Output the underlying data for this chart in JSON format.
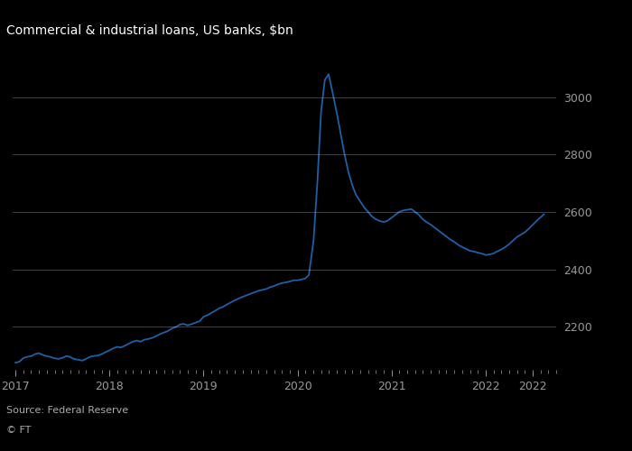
{
  "title": "Commercial & industrial loans, US banks, $bn",
  "source": "Source: Federal Reserve",
  "credit": "© FT",
  "line_color": "#1f5fa6",
  "background_color": "#000000",
  "text_color": "#ffffff",
  "grid_color": "#ffffff",
  "tick_color": "#888888",
  "ylabel_color": "#999999",
  "ylim": [
    2050,
    3150
  ],
  "yticks": [
    2200,
    2400,
    2600,
    2800,
    3000
  ],
  "xlim": [
    2016.97,
    2022.75
  ],
  "data": [
    [
      2017.0,
      2075
    ],
    [
      2017.04,
      2078
    ],
    [
      2017.08,
      2090
    ],
    [
      2017.12,
      2095
    ],
    [
      2017.17,
      2098
    ],
    [
      2017.21,
      2105
    ],
    [
      2017.25,
      2108
    ],
    [
      2017.29,
      2102
    ],
    [
      2017.33,
      2098
    ],
    [
      2017.37,
      2095
    ],
    [
      2017.42,
      2090
    ],
    [
      2017.46,
      2088
    ],
    [
      2017.5,
      2092
    ],
    [
      2017.54,
      2098
    ],
    [
      2017.58,
      2095
    ],
    [
      2017.62,
      2088
    ],
    [
      2017.67,
      2085
    ],
    [
      2017.71,
      2082
    ],
    [
      2017.75,
      2088
    ],
    [
      2017.79,
      2095
    ],
    [
      2017.83,
      2098
    ],
    [
      2017.88,
      2100
    ],
    [
      2017.92,
      2105
    ],
    [
      2017.96,
      2112
    ],
    [
      2018.0,
      2118
    ],
    [
      2018.04,
      2125
    ],
    [
      2018.08,
      2130
    ],
    [
      2018.12,
      2128
    ],
    [
      2018.17,
      2135
    ],
    [
      2018.21,
      2142
    ],
    [
      2018.25,
      2148
    ],
    [
      2018.29,
      2152
    ],
    [
      2018.33,
      2148
    ],
    [
      2018.37,
      2155
    ],
    [
      2018.42,
      2158
    ],
    [
      2018.46,
      2162
    ],
    [
      2018.5,
      2168
    ],
    [
      2018.54,
      2175
    ],
    [
      2018.58,
      2180
    ],
    [
      2018.62,
      2185
    ],
    [
      2018.67,
      2195
    ],
    [
      2018.71,
      2200
    ],
    [
      2018.75,
      2208
    ],
    [
      2018.79,
      2210
    ],
    [
      2018.83,
      2205
    ],
    [
      2018.88,
      2210
    ],
    [
      2018.92,
      2215
    ],
    [
      2018.96,
      2220
    ],
    [
      2019.0,
      2235
    ],
    [
      2019.04,
      2240
    ],
    [
      2019.08,
      2248
    ],
    [
      2019.12,
      2255
    ],
    [
      2019.17,
      2265
    ],
    [
      2019.21,
      2270
    ],
    [
      2019.25,
      2278
    ],
    [
      2019.29,
      2285
    ],
    [
      2019.33,
      2292
    ],
    [
      2019.37,
      2298
    ],
    [
      2019.42,
      2305
    ],
    [
      2019.46,
      2310
    ],
    [
      2019.5,
      2315
    ],
    [
      2019.54,
      2320
    ],
    [
      2019.58,
      2325
    ],
    [
      2019.62,
      2328
    ],
    [
      2019.67,
      2332
    ],
    [
      2019.71,
      2338
    ],
    [
      2019.75,
      2342
    ],
    [
      2019.79,
      2348
    ],
    [
      2019.83,
      2352
    ],
    [
      2019.88,
      2355
    ],
    [
      2019.92,
      2358
    ],
    [
      2019.96,
      2362
    ],
    [
      2020.0,
      2362
    ],
    [
      2020.04,
      2365
    ],
    [
      2020.08,
      2368
    ],
    [
      2020.12,
      2380
    ],
    [
      2020.17,
      2500
    ],
    [
      2020.21,
      2700
    ],
    [
      2020.25,
      2950
    ],
    [
      2020.29,
      3060
    ],
    [
      2020.33,
      3080
    ],
    [
      2020.37,
      3020
    ],
    [
      2020.42,
      2940
    ],
    [
      2020.46,
      2870
    ],
    [
      2020.5,
      2800
    ],
    [
      2020.54,
      2740
    ],
    [
      2020.58,
      2695
    ],
    [
      2020.62,
      2660
    ],
    [
      2020.67,
      2635
    ],
    [
      2020.71,
      2615
    ],
    [
      2020.75,
      2600
    ],
    [
      2020.79,
      2585
    ],
    [
      2020.83,
      2575
    ],
    [
      2020.88,
      2568
    ],
    [
      2020.92,
      2565
    ],
    [
      2020.96,
      2570
    ],
    [
      2021.0,
      2580
    ],
    [
      2021.04,
      2590
    ],
    [
      2021.08,
      2600
    ],
    [
      2021.12,
      2605
    ],
    [
      2021.17,
      2608
    ],
    [
      2021.21,
      2610
    ],
    [
      2021.25,
      2600
    ],
    [
      2021.29,
      2590
    ],
    [
      2021.33,
      2575
    ],
    [
      2021.37,
      2565
    ],
    [
      2021.42,
      2555
    ],
    [
      2021.46,
      2545
    ],
    [
      2021.5,
      2535
    ],
    [
      2021.54,
      2525
    ],
    [
      2021.58,
      2515
    ],
    [
      2021.62,
      2505
    ],
    [
      2021.67,
      2495
    ],
    [
      2021.71,
      2485
    ],
    [
      2021.75,
      2478
    ],
    [
      2021.79,
      2472
    ],
    [
      2021.83,
      2465
    ],
    [
      2021.88,
      2462
    ],
    [
      2021.92,
      2458
    ],
    [
      2021.96,
      2455
    ],
    [
      2022.0,
      2450
    ],
    [
      2022.04,
      2452
    ],
    [
      2022.08,
      2455
    ],
    [
      2022.12,
      2462
    ],
    [
      2022.17,
      2470
    ],
    [
      2022.21,
      2478
    ],
    [
      2022.25,
      2488
    ],
    [
      2022.29,
      2500
    ],
    [
      2022.33,
      2512
    ],
    [
      2022.37,
      2520
    ],
    [
      2022.42,
      2530
    ],
    [
      2022.46,
      2542
    ],
    [
      2022.5,
      2555
    ],
    [
      2022.54,
      2568
    ],
    [
      2022.58,
      2580
    ],
    [
      2022.62,
      2592
    ]
  ]
}
